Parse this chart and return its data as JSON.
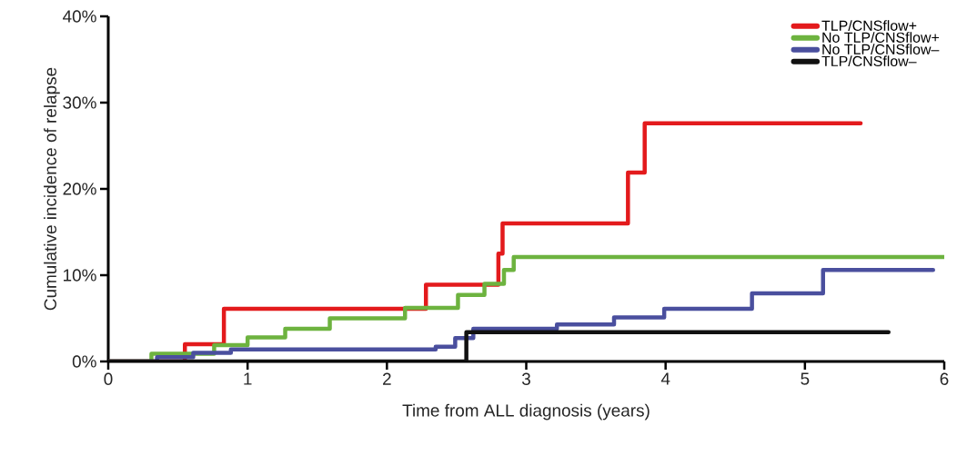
{
  "chart_data": {
    "type": "step",
    "xlabel": "Time from ALL diagnosis (years)",
    "ylabel": "Cumulative incidence of relapse",
    "xlim": [
      0,
      6
    ],
    "xticks": [
      0,
      1,
      2,
      3,
      4,
      5,
      6
    ],
    "ylim": [
      0,
      40
    ],
    "yticks": [
      {
        "value": 0,
        "label": "0%"
      },
      {
        "value": 10,
        "label": "10%"
      },
      {
        "value": 20,
        "label": "20%"
      },
      {
        "value": 30,
        "label": "30%"
      },
      {
        "value": 40,
        "label": "40%"
      }
    ],
    "legend": "top right",
    "series": [
      {
        "name": "TLP/CNSflow+",
        "color": "#e31a1c",
        "x": [
          0,
          0.55,
          0.83,
          2.28,
          2.8,
          2.83,
          3.73,
          3.85,
          5.4
        ],
        "values": [
          0,
          2.0,
          6.1,
          8.9,
          12.5,
          16.0,
          21.9,
          27.6,
          27.6
        ]
      },
      {
        "name": "No TLP/CNSflow+",
        "color": "#6db33f",
        "x": [
          0,
          0.31,
          0.76,
          1.0,
          1.27,
          1.59,
          2.13,
          2.51,
          2.7,
          2.84,
          2.91,
          6.0
        ],
        "values": [
          0,
          0.9,
          1.9,
          2.8,
          3.8,
          5.0,
          6.2,
          7.7,
          9.0,
          10.6,
          12.1,
          12.1
        ]
      },
      {
        "name": "No TLP/CNSflow–",
        "color": "#4a4f9e",
        "x": [
          0,
          0.35,
          0.61,
          0.88,
          2.35,
          2.49,
          2.62,
          3.22,
          3.63,
          3.99,
          4.62,
          5.13,
          5.92
        ],
        "values": [
          0,
          0.5,
          1.0,
          1.4,
          1.7,
          2.7,
          3.8,
          4.3,
          5.1,
          6.1,
          7.9,
          10.6,
          10.6
        ]
      },
      {
        "name": "TLP/CNSflow–",
        "color": "#111111",
        "x": [
          0,
          2.57,
          5.6
        ],
        "values": [
          0,
          3.4,
          3.4
        ]
      }
    ]
  }
}
